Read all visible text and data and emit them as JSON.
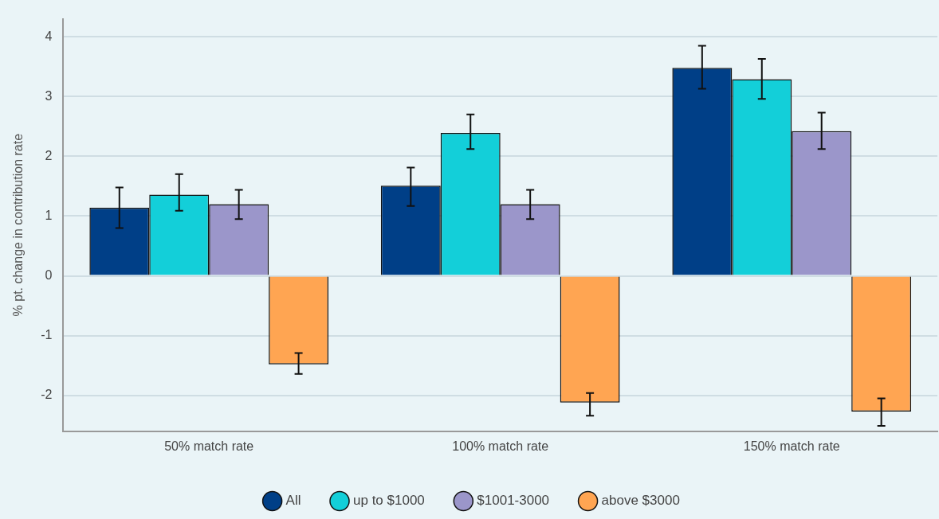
{
  "chart_data": {
    "type": "bar",
    "ylabel": "% pt. change in contribution rate",
    "categories": [
      "50% match rate",
      "100% match rate",
      "150% match rate"
    ],
    "series": [
      {
        "name": "All",
        "color": "#003f87",
        "values": [
          1.14,
          1.51,
          3.48
        ],
        "errors": [
          [
            0.8,
            1.48
          ],
          [
            1.17,
            1.81
          ],
          [
            3.13,
            3.85
          ]
        ]
      },
      {
        "name": "up to $1000",
        "color": "#13cfd9",
        "values": [
          1.36,
          2.39,
          3.29
        ],
        "errors": [
          [
            1.09,
            1.7
          ],
          [
            2.12,
            2.7
          ],
          [
            2.96,
            3.63
          ]
        ]
      },
      {
        "name": "$1001-3000",
        "color": "#9b96ca",
        "values": [
          1.2,
          1.2,
          2.42
        ],
        "errors": [
          [
            0.95,
            1.44
          ],
          [
            0.95,
            1.44
          ],
          [
            2.12,
            2.73
          ]
        ]
      },
      {
        "name": "above $3000",
        "color": "#ffa552",
        "values": [
          -1.48,
          -2.12,
          -2.27
        ],
        "errors": [
          [
            -1.64,
            -1.29
          ],
          [
            -2.34,
            -1.96
          ],
          [
            -2.51,
            -2.05
          ]
        ]
      }
    ],
    "ylim": [
      -2.6,
      4.3
    ],
    "yticks": [
      -2,
      -1,
      0,
      1,
      2,
      3,
      4
    ],
    "grid": "y",
    "legend": "bottom"
  }
}
